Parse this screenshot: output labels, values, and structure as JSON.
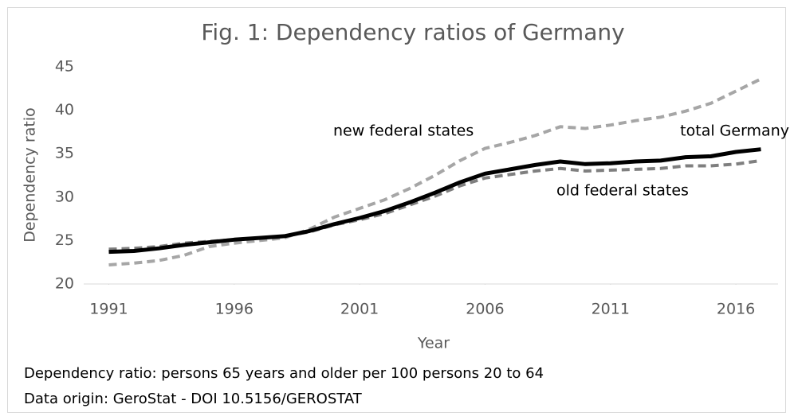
{
  "chart_data": {
    "type": "line",
    "title": "Fig. 1: Dependency ratios of Germany",
    "x_label": "Year",
    "y_label": "Dependency ratio",
    "x": [
      1991,
      1992,
      1993,
      1994,
      1995,
      1996,
      1997,
      1998,
      1999,
      2000,
      2001,
      2002,
      2003,
      2004,
      2005,
      2006,
      2007,
      2008,
      2009,
      2010,
      2011,
      2012,
      2013,
      2014,
      2015,
      2016,
      2017
    ],
    "series": [
      {
        "name": "new federal states",
        "color": "#a6a6a6",
        "dash": true,
        "values": [
          22.2,
          22.4,
          22.7,
          23.3,
          24.3,
          24.7,
          25.0,
          25.3,
          26.3,
          27.7,
          28.7,
          29.7,
          31.0,
          32.5,
          34.2,
          35.6,
          36.3,
          37.1,
          38.1,
          37.9,
          38.3,
          38.8,
          39.2,
          39.9,
          40.8,
          42.2,
          43.6
        ]
      },
      {
        "name": "old federal states",
        "color": "#7f7f7f",
        "dash": true,
        "values": [
          24.0,
          24.1,
          24.3,
          24.7,
          24.9,
          25.1,
          25.3,
          25.5,
          26.0,
          26.8,
          27.4,
          28.1,
          29.1,
          30.1,
          31.3,
          32.2,
          32.6,
          33.0,
          33.3,
          33.0,
          33.1,
          33.2,
          33.3,
          33.6,
          33.6,
          33.8,
          34.2
        ]
      },
      {
        "name": "total Germany",
        "color": "#000000",
        "dash": false,
        "values": [
          23.7,
          23.8,
          24.1,
          24.5,
          24.8,
          25.1,
          25.3,
          25.5,
          26.1,
          26.9,
          27.6,
          28.4,
          29.4,
          30.5,
          31.7,
          32.7,
          33.2,
          33.7,
          34.1,
          33.8,
          33.9,
          34.1,
          34.2,
          34.6,
          34.7,
          35.2,
          35.5
        ]
      }
    ],
    "xlim": [
      1990,
      2018
    ],
    "xticks": [
      1991,
      1996,
      2001,
      2006,
      2011,
      2016
    ],
    "ylim": [
      20,
      45
    ],
    "yticks": [
      20,
      25,
      30,
      35,
      40,
      45
    ],
    "grid": false,
    "notes": [
      "Dependency ratio: persons 65 years and older per 100 persons 20 to 64",
      "Data origin:  GeroStat - DOI 10.5156/GEROSTAT"
    ]
  }
}
